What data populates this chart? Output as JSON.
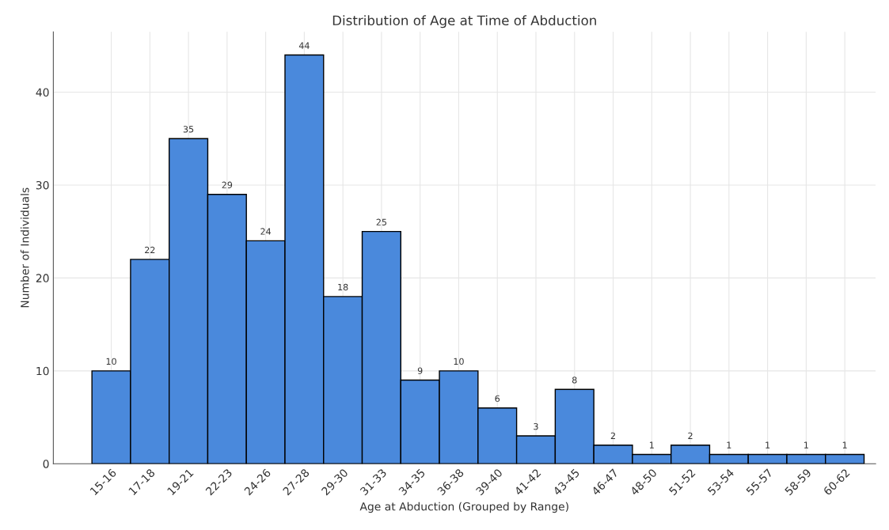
{
  "chart_data": {
    "type": "bar",
    "title": "Distribution of Age at Time of Abduction",
    "xlabel": "Age at Abduction (Grouped by Range)",
    "ylabel": "Number of Individuals",
    "categories": [
      "15-16",
      "17-18",
      "19-21",
      "22-23",
      "24-26",
      "27-28",
      "29-30",
      "31-33",
      "34-35",
      "36-38",
      "39-40",
      "41-42",
      "43-45",
      "46-47",
      "48-50",
      "51-52",
      "53-54",
      "55-57",
      "58-59",
      "60-62"
    ],
    "values": [
      10,
      22,
      35,
      29,
      24,
      44,
      18,
      25,
      9,
      10,
      6,
      3,
      8,
      2,
      1,
      2,
      1,
      1,
      1,
      1
    ],
    "color": "#4a89dc",
    "ylim": [
      0,
      46.5
    ],
    "yticks": [
      0,
      10,
      20,
      30,
      40
    ],
    "grid": true,
    "data_labels": true
  }
}
